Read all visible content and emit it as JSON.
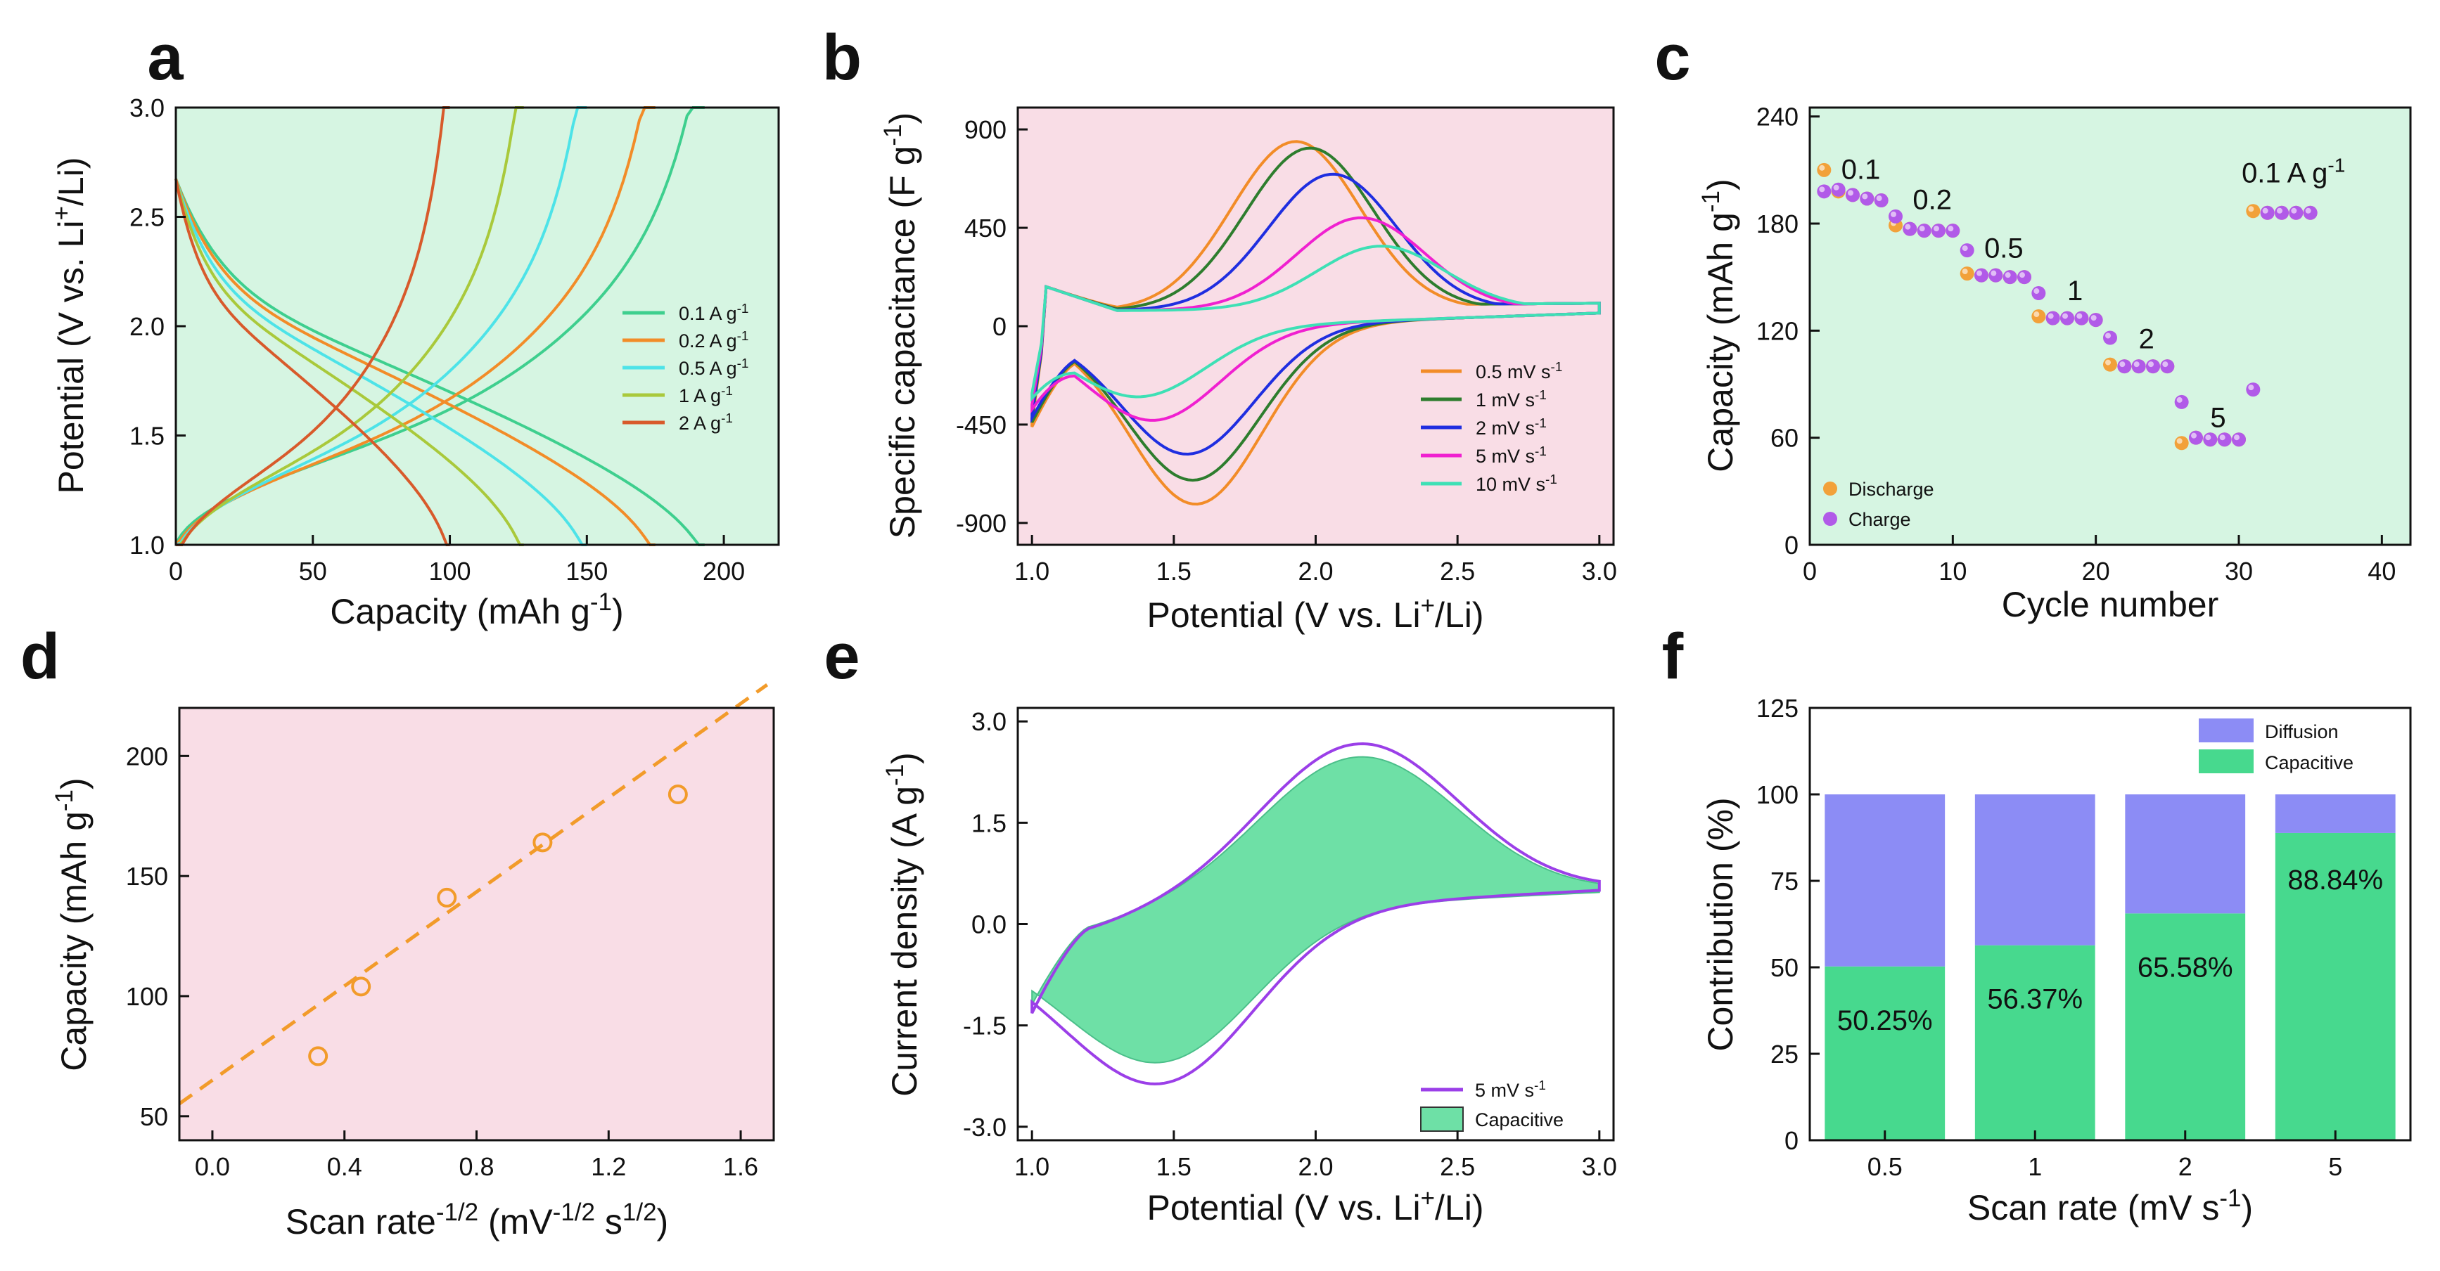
{
  "chart_data": [
    {
      "panel": "a",
      "type": "line",
      "xlabel": "Capacity (mAh g-1)",
      "ylabel": "Potential (V vs. Li+/Li)",
      "xlim": [
        0,
        220
      ],
      "ylim": [
        1.0,
        3.0
      ],
      "xticks": [
        0,
        50,
        100,
        150,
        200
      ],
      "yticks": [
        1.0,
        1.5,
        2.0,
        2.5,
        3.0
      ],
      "background": "#d6f5e2",
      "series": [
        {
          "name": "0.1 A g",
          "unit_exp": "-1",
          "color": "#3ecf8e",
          "qmax": 193
        },
        {
          "name": "0.2 A g",
          "unit_exp": "-1",
          "color": "#f28c28",
          "qmax": 175
        },
        {
          "name": "0.5 A g",
          "unit_exp": "-1",
          "color": "#4de3e8",
          "qmax": 150
        },
        {
          "name": "1 A g",
          "unit_exp": "-1",
          "color": "#a9c93b",
          "qmax": 127
        },
        {
          "name": "2 A g",
          "unit_exp": "-1",
          "color": "#d85a2b",
          "qmax": 100
        }
      ]
    },
    {
      "panel": "b",
      "type": "line",
      "xlabel": "Potential (V vs. Li+/Li)",
      "ylabel": "Specific capacitance (F g-1)",
      "xlim": [
        0.95,
        3.05
      ],
      "ylim": [
        -1000,
        1000
      ],
      "xticks": [
        1.0,
        1.5,
        2.0,
        2.5,
        3.0
      ],
      "yticks": [
        -900,
        -450,
        0,
        450,
        900
      ],
      "background": "#f9dde6",
      "series": [
        {
          "name": "0.5 mV s",
          "unit_exp": "-1",
          "color": "#f28c28",
          "peak_ox": [
            1.93,
            830
          ],
          "peak_red": [
            1.58,
            -870
          ],
          "start": [
            1.0,
            -460
          ]
        },
        {
          "name": "1 mV s",
          "unit_exp": "-1",
          "color": "#2e7d2e",
          "peak_ox": [
            1.98,
            800
          ],
          "peak_red": [
            1.57,
            -760
          ],
          "start": [
            1.0,
            -440
          ]
        },
        {
          "name": "2 mV s",
          "unit_exp": "-1",
          "color": "#1f2ee0",
          "peak_ox": [
            2.06,
            680
          ],
          "peak_red": [
            1.55,
            -640
          ],
          "start": [
            1.0,
            -420
          ]
        },
        {
          "name": "5 mV s",
          "unit_exp": "-1",
          "color": "#f020d0",
          "peak_ox": [
            2.16,
            480
          ],
          "peak_red": [
            1.43,
            -480
          ],
          "start": [
            1.0,
            -380
          ]
        },
        {
          "name": "10 mV s",
          "unit_exp": "-1",
          "color": "#3ee0b5",
          "peak_ox": [
            2.23,
            350
          ],
          "peak_red": [
            1.38,
            -370
          ],
          "start": [
            1.0,
            -330
          ]
        }
      ]
    },
    {
      "panel": "c",
      "type": "scatter",
      "xlabel": "Cycle number",
      "ylabel": "Capacity (mAh g-1)",
      "xlim": [
        0,
        42
      ],
      "ylim": [
        0,
        245
      ],
      "xticks": [
        0,
        10,
        20,
        30,
        40
      ],
      "yticks": [
        0,
        60,
        120,
        180,
        240
      ],
      "background": "#d6f5e2",
      "series": [
        {
          "name": "Discharge",
          "color": "#f2a13a",
          "x": [
            1,
            2,
            3,
            4,
            5,
            6,
            7,
            8,
            9,
            10,
            11,
            12,
            13,
            14,
            15,
            16,
            17,
            18,
            19,
            20,
            21,
            22,
            23,
            24,
            25,
            26,
            27,
            28,
            29,
            30,
            31,
            32,
            33,
            34,
            35
          ],
          "values": [
            210,
            198,
            196,
            194,
            193,
            179,
            177,
            176,
            176,
            176,
            152,
            151,
            151,
            150,
            150,
            128,
            127,
            127,
            127,
            126,
            101,
            100,
            100,
            100,
            100,
            57,
            60,
            59,
            59,
            59,
            187,
            186,
            186,
            186,
            186
          ]
        },
        {
          "name": "Charge",
          "color": "#b15ae8",
          "x": [
            1,
            2,
            3,
            4,
            5,
            6,
            7,
            8,
            9,
            10,
            11,
            12,
            13,
            14,
            15,
            16,
            17,
            18,
            19,
            20,
            21,
            22,
            23,
            24,
            25,
            26,
            27,
            28,
            29,
            30,
            31,
            32,
            33,
            34,
            35
          ],
          "values": [
            198,
            199,
            196,
            194,
            193,
            184,
            177,
            176,
            176,
            176,
            165,
            151,
            151,
            150,
            150,
            141,
            127,
            127,
            127,
            126,
            116,
            100,
            100,
            100,
            100,
            80,
            60,
            59,
            59,
            59,
            87,
            186,
            186,
            186,
            186
          ]
        }
      ],
      "annotations": [
        {
          "text": "0.1",
          "x": 2.2,
          "y": 205
        },
        {
          "text": "0.2",
          "x": 7.2,
          "y": 188
        },
        {
          "text": "0.5",
          "x": 12.2,
          "y": 161
        },
        {
          "text": "1",
          "x": 18,
          "y": 137
        },
        {
          "text": "2",
          "x": 23,
          "y": 110
        },
        {
          "text": "5",
          "x": 28,
          "y": 66
        },
        {
          "text": "0.1 A g-1",
          "x": 30.2,
          "y": 203
        }
      ]
    },
    {
      "panel": "d",
      "type": "scatter",
      "xlabel": "Scan rate-1/2 (mV-1/2 s1/2)",
      "ylabel": "Capacity (mAh g-1)",
      "xlim": [
        -0.1,
        1.7
      ],
      "ylim": [
        40,
        220
      ],
      "xticks": [
        0.0,
        0.4,
        0.8,
        1.2,
        1.6
      ],
      "yticks": [
        50,
        100,
        150,
        200
      ],
      "background": "#f9dde6",
      "x": [
        0.32,
        0.45,
        0.71,
        1.0,
        1.41
      ],
      "values": [
        75,
        104,
        141,
        164,
        184
      ],
      "fit": {
        "slope": 98,
        "intercept": 65,
        "color": "#f29b2a"
      }
    },
    {
      "panel": "e",
      "type": "area",
      "xlabel": "Potential (V vs. Li+/Li)",
      "ylabel": "Current density (A g-1)",
      "xlim": [
        0.95,
        3.05
      ],
      "ylim": [
        -3.2,
        3.2
      ],
      "xticks": [
        1.0,
        1.5,
        2.0,
        2.5,
        3.0
      ],
      "yticks": [
        -3.0,
        -1.5,
        0.0,
        1.5,
        3.0
      ],
      "series": [
        {
          "name": "5 mV s",
          "unit_exp": "-1",
          "color": "#9b3fe8"
        },
        {
          "name": "Capacitive",
          "color": "#6ee0a6"
        }
      ]
    },
    {
      "panel": "f",
      "type": "bar",
      "xlabel": "Scan rate (mV s-1)",
      "ylabel": "Contribution (%)",
      "ylim": [
        0,
        125
      ],
      "yticks": [
        0,
        25,
        50,
        75,
        100,
        125
      ],
      "categories": [
        "0.5",
        "1",
        "2",
        "5"
      ],
      "series": [
        {
          "name": "Capacitive",
          "color": "#47d98e",
          "values": [
            50.25,
            56.37,
            65.58,
            88.84
          ]
        },
        {
          "name": "Diffusion",
          "color": "#8c8cf5",
          "values": [
            49.75,
            43.63,
            34.42,
            11.16
          ]
        }
      ],
      "labels": [
        "50.25%",
        "56.37%",
        "65.58%",
        "88.84%"
      ]
    }
  ]
}
